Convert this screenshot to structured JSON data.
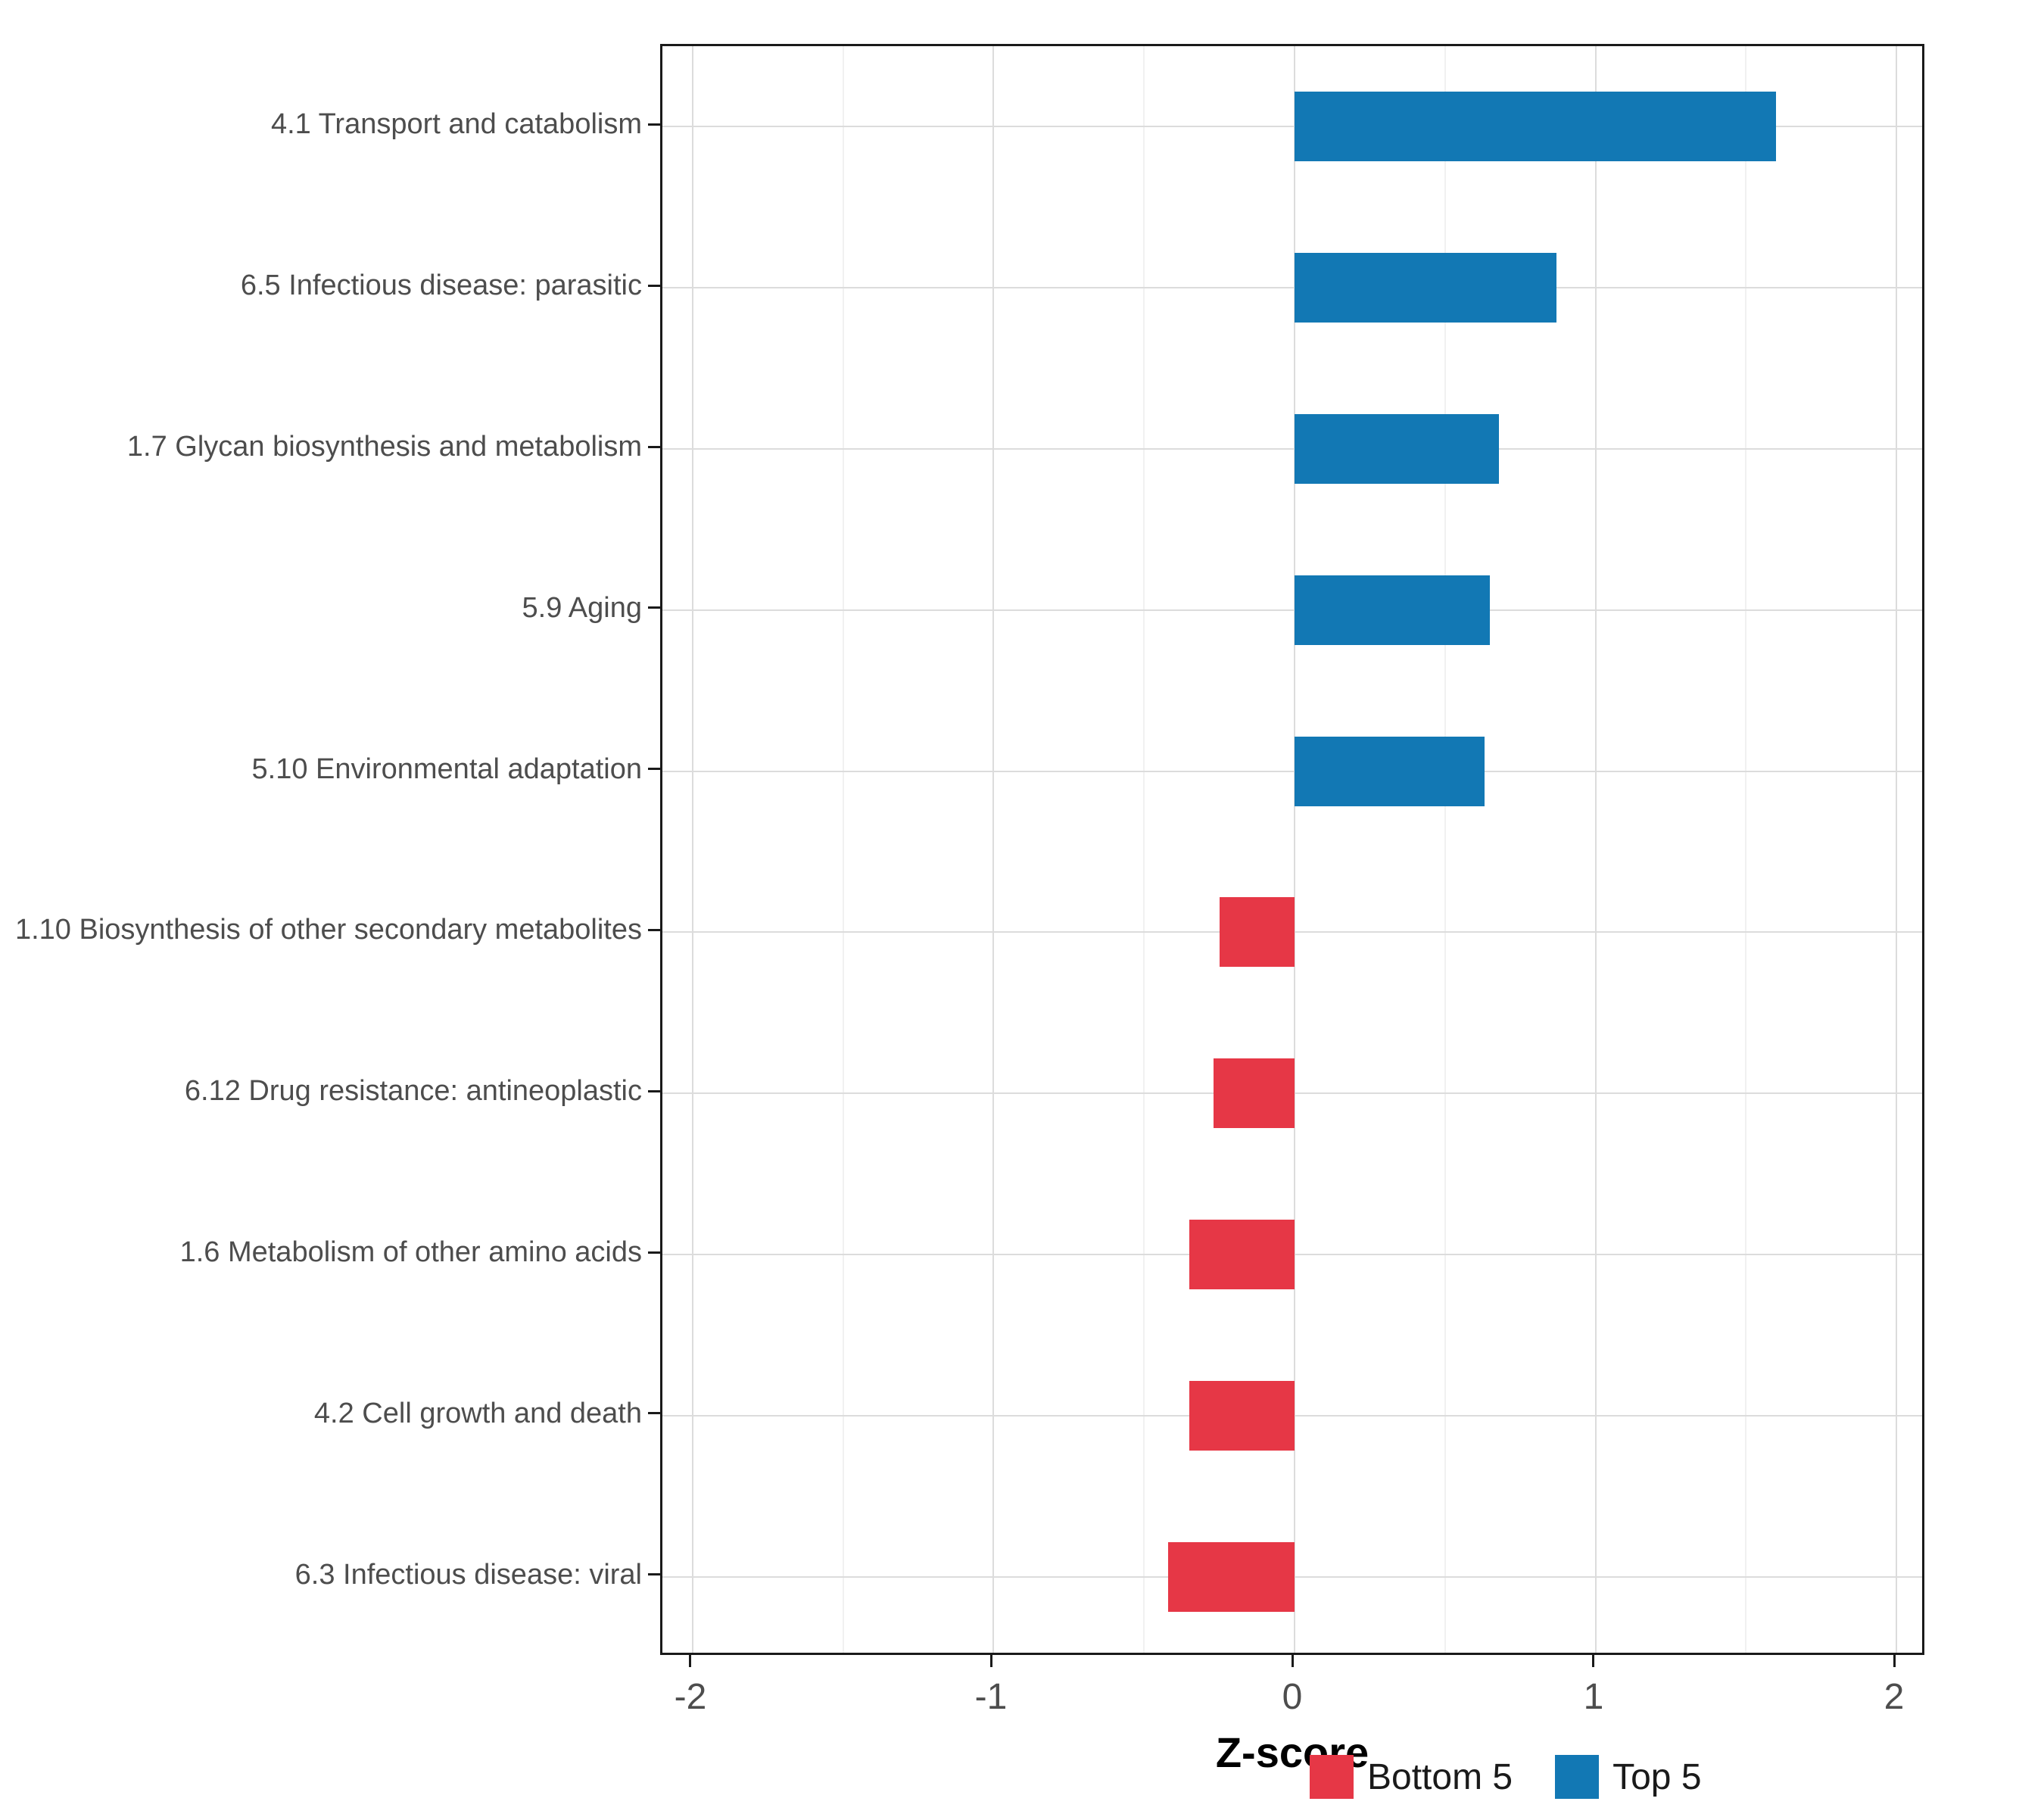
{
  "figure": {
    "background": "#ffffff"
  },
  "chart_data": {
    "type": "bar",
    "orientation": "horizontal",
    "title": "",
    "xlabel": "Z-score",
    "ylabel": "",
    "xlim": [
      -2.1,
      2.1
    ],
    "x_tick_values": [
      -2,
      -1,
      0,
      1,
      2
    ],
    "x_tick_labels": [
      "-2",
      "-1",
      "0",
      "1",
      "2"
    ],
    "x_minor_tick_values": [
      -1.5,
      -0.5,
      0.5,
      1.5
    ],
    "grid": true,
    "categories": [
      "4.1 Transport and catabolism",
      "6.5 Infectious disease: parasitic",
      "1.7 Glycan biosynthesis and metabolism",
      "5.9 Aging",
      "5.10 Environmental adaptation",
      "1.10 Biosynthesis of other secondary metabolites",
      "6.12 Drug resistance: antineoplastic",
      "1.6 Metabolism of other amino acids",
      "4.2 Cell growth and death",
      "6.3 Infectious disease: viral"
    ],
    "values": [
      1.6,
      0.87,
      0.68,
      0.65,
      0.63,
      -0.25,
      -0.27,
      -0.35,
      -0.35,
      -0.42
    ],
    "groups": [
      "Top 5",
      "Top 5",
      "Top 5",
      "Top 5",
      "Top 5",
      "Bottom 5",
      "Bottom 5",
      "Bottom 5",
      "Bottom 5",
      "Bottom 5"
    ],
    "colors": {
      "Bottom 5": "#E63746",
      "Top 5": "#1278B4"
    },
    "legend": {
      "position": "bottom-right",
      "entries": [
        "Bottom 5",
        "Top 5"
      ]
    }
  }
}
